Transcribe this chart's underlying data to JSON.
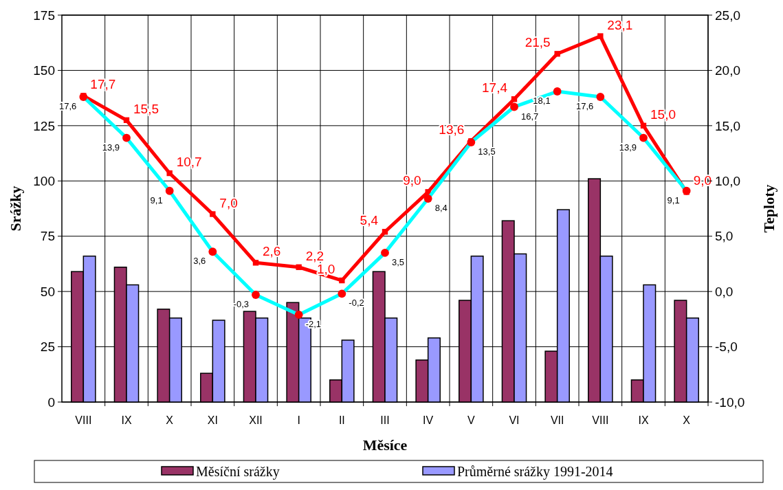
{
  "chart_data": {
    "type": "bar",
    "xlabel": "Měsíce",
    "ylabel": "Srážky",
    "y2label": "Teploty",
    "categories": [
      "VIII",
      "IX",
      "X",
      "XI",
      "XII",
      "I",
      "II",
      "III",
      "IV",
      "V",
      "VI",
      "VII",
      "VIII",
      "IX",
      "X"
    ],
    "series": [
      {
        "name": "Měsíční srážky",
        "color": "#993366",
        "values": [
          59,
          61,
          42,
          13,
          41,
          45,
          10,
          59,
          19,
          46,
          82,
          23,
          101,
          10,
          46
        ]
      },
      {
        "name": "Průměrné srážky 1991-2014",
        "color": "#9999ff",
        "values": [
          66,
          53,
          38,
          37,
          38,
          38,
          28,
          38,
          29,
          66,
          67,
          87,
          66,
          53,
          38
        ]
      },
      {
        "type": "line",
        "axis": "y2",
        "color": "#ff0000",
        "marker": "square",
        "values": [
          17.7,
          15.5,
          10.7,
          7.0,
          2.6,
          2.2,
          1.0,
          5.4,
          9.0,
          13.6,
          17.4,
          21.5,
          23.1,
          15.0,
          9.0
        ],
        "value_labels": [
          "17,7",
          "15,5",
          "10,7",
          "7,0",
          "2,6",
          "2,2",
          "1,0",
          "5,4",
          "9,0",
          "13,6",
          "17,4",
          "21,5",
          "23,1",
          "15,0",
          "9,0"
        ]
      },
      {
        "type": "line",
        "axis": "y2",
        "color": "#00ffff",
        "marker": "circle",
        "values": [
          17.6,
          13.9,
          9.1,
          3.6,
          -0.3,
          -2.1,
          -0.2,
          3.5,
          8.4,
          13.5,
          16.7,
          18.1,
          17.6,
          13.9,
          9.1
        ],
        "value_labels": [
          "17,6",
          "13,9",
          "9,1",
          "3,6",
          "-0,3",
          "-2,1",
          "-0,2",
          "3,5",
          "8,4",
          "13,5",
          "16,7",
          "18,1",
          "17,6",
          "13,9",
          "9,1"
        ]
      }
    ],
    "ylim": [
      0,
      175
    ],
    "yticks": [
      0,
      25,
      50,
      75,
      100,
      125,
      150,
      175
    ],
    "y2lim": [
      -10,
      25
    ],
    "y2ticks": [
      {
        "value": -10,
        "label": "-10,0"
      },
      {
        "value": -5,
        "label": "-5,0"
      },
      {
        "value": 0,
        "label": "0,0"
      },
      {
        "value": 5,
        "label": "5,0"
      },
      {
        "value": 10,
        "label": "10,0"
      },
      {
        "value": 15,
        "label": "15,0"
      },
      {
        "value": 20,
        "label": "20,0"
      },
      {
        "value": 25,
        "label": "25,0"
      }
    ],
    "grid": true,
    "legend": "bottom"
  }
}
